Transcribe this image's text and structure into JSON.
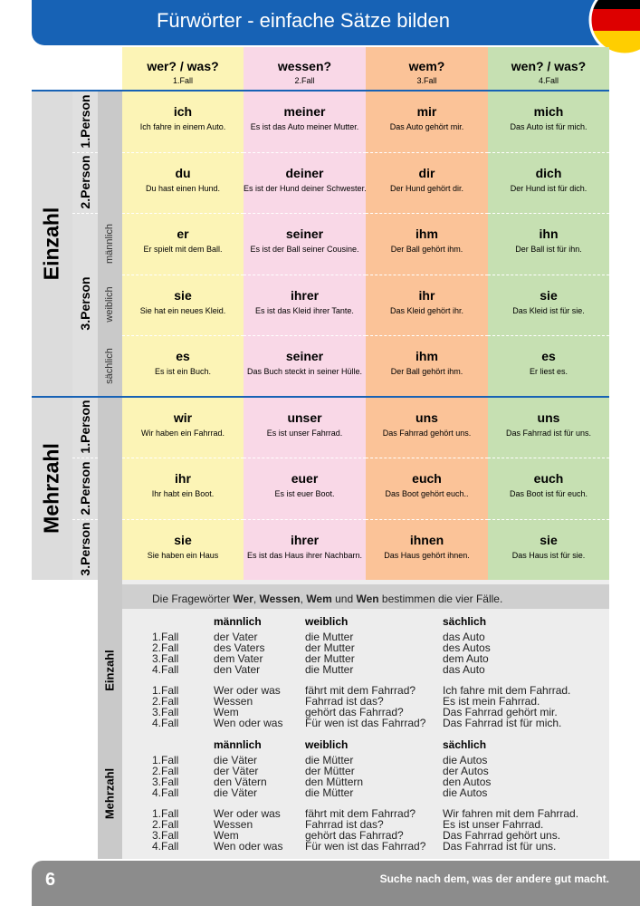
{
  "header": {
    "title": "Fürwörter - einfache Sätze bilden"
  },
  "table": {
    "columns": [
      {
        "question": "wer? / was?",
        "case": "1.Fall"
      },
      {
        "question": "wessen?",
        "case": "2.Fall"
      },
      {
        "question": "wem?",
        "case": "3.Fall"
      },
      {
        "question": "wen? / was?",
        "case": "4.Fall"
      }
    ],
    "groups": [
      {
        "label": "Einzahl",
        "persons": [
          {
            "label": "1.Person",
            "rows": [
              {
                "cells": [
                  {
                    "pronoun": "ich",
                    "example": "Ich fahre in einem Auto."
                  },
                  {
                    "pronoun": "meiner",
                    "example": "Es ist das Auto meiner Mutter."
                  },
                  {
                    "pronoun": "mir",
                    "example": "Das Auto gehört mir."
                  },
                  {
                    "pronoun": "mich",
                    "example": "Das Auto ist für mich."
                  }
                ]
              }
            ]
          },
          {
            "label": "2.Person",
            "rows": [
              {
                "cells": [
                  {
                    "pronoun": "du",
                    "example": "Du hast einen Hund."
                  },
                  {
                    "pronoun": "deiner",
                    "example": "Es ist der Hund deiner Schwester."
                  },
                  {
                    "pronoun": "dir",
                    "example": "Der Hund gehört dir."
                  },
                  {
                    "pronoun": "dich",
                    "example": "Der Hund ist für dich."
                  }
                ]
              }
            ]
          },
          {
            "label": "3.Person",
            "rows": [
              {
                "gender": "männlich",
                "cells": [
                  {
                    "pronoun": "er",
                    "example": "Er spielt mit dem Ball."
                  },
                  {
                    "pronoun": "seiner",
                    "example": "Es ist der Ball seiner Cousine."
                  },
                  {
                    "pronoun": "ihm",
                    "example": "Der Ball gehört ihm."
                  },
                  {
                    "pronoun": "ihn",
                    "example": "Der Ball ist für ihn."
                  }
                ]
              },
              {
                "gender": "weiblich",
                "cells": [
                  {
                    "pronoun": "sie",
                    "example": "Sie hat ein neues Kleid."
                  },
                  {
                    "pronoun": "ihrer",
                    "example": "Es ist das Kleid ihrer Tante."
                  },
                  {
                    "pronoun": "ihr",
                    "example": "Das Kleid gehört ihr."
                  },
                  {
                    "pronoun": "sie",
                    "example": "Das Kleid ist für sie."
                  }
                ]
              },
              {
                "gender": "sächlich",
                "cells": [
                  {
                    "pronoun": "es",
                    "example": "Es ist ein Buch."
                  },
                  {
                    "pronoun": "seiner",
                    "example": "Das Buch steckt in seiner Hülle."
                  },
                  {
                    "pronoun": "ihm",
                    "example": "Der Ball gehört ihm."
                  },
                  {
                    "pronoun": "es",
                    "example": "Er liest es."
                  }
                ]
              }
            ]
          }
        ]
      },
      {
        "label": "Mehrzahl",
        "persons": [
          {
            "label": "1.Person",
            "rows": [
              {
                "cells": [
                  {
                    "pronoun": "wir",
                    "example": "Wir haben ein Fahrrad."
                  },
                  {
                    "pronoun": "unser",
                    "example": "Es ist unser Fahrrad."
                  },
                  {
                    "pronoun": "uns",
                    "example": "Das Fahrrad gehört uns."
                  },
                  {
                    "pronoun": "uns",
                    "example": "Das Fahrrad ist für uns."
                  }
                ]
              }
            ]
          },
          {
            "label": "2.Person",
            "rows": [
              {
                "cells": [
                  {
                    "pronoun": "ihr",
                    "example": "Ihr habt ein Boot."
                  },
                  {
                    "pronoun": "euer",
                    "example": "Es ist euer Boot."
                  },
                  {
                    "pronoun": "euch",
                    "example": "Das Boot gehört euch.."
                  },
                  {
                    "pronoun": "euch",
                    "example": "Das Boot ist für euch."
                  }
                ]
              }
            ]
          },
          {
            "label": "3.Person",
            "rows": [
              {
                "cells": [
                  {
                    "pronoun": "sie",
                    "example": "Sie haben ein Haus"
                  },
                  {
                    "pronoun": "ihrer",
                    "example": "Es ist das Haus ihrer Nachbarn."
                  },
                  {
                    "pronoun": "ihnen",
                    "example": "Das Haus gehört ihnen."
                  },
                  {
                    "pronoun": "sie",
                    "example": "Das Haus ist für sie."
                  }
                ]
              }
            ]
          }
        ]
      }
    ]
  },
  "declension": {
    "intro": [
      "Die Fragewörter ",
      "Wer",
      ", ",
      "Wessen",
      ", ",
      "Wem",
      " und ",
      "Wen",
      " bestimmen die vier Fälle."
    ],
    "sections": [
      {
        "label": "Einzahl",
        "headers": [
          "männlich",
          "weiblich",
          "sächlich"
        ],
        "blocks": [
          [
            [
              "1.Fall",
              "der Vater",
              "die Mutter",
              "das Auto"
            ],
            [
              "2.Fall",
              "des Vaters",
              "der Mutter",
              "des Autos"
            ],
            [
              "3.Fall",
              "dem Vater",
              "der Mutter",
              "dem Auto"
            ],
            [
              "4.Fall",
              "den Vater",
              "die Mutter",
              "das Auto"
            ]
          ],
          [
            [
              "1.Fall",
              "Wer oder was",
              "fährt mit dem Fahrrad?",
              "Ich fahre mit dem Fahrrad."
            ],
            [
              "2.Fall",
              "Wessen",
              "Fahrrad ist das?",
              "Es ist mein Fahrrad."
            ],
            [
              "3.Fall",
              "Wem",
              "gehört das Fahrrad?",
              "Das Fahrrad gehört mir."
            ],
            [
              "4.Fall",
              "Wen oder was",
              "Für wen ist das Fahrrad?",
              "Das Fahrrad ist für mich."
            ]
          ]
        ]
      },
      {
        "label": "Mehrzahl",
        "headers": [
          "männlich",
          "weiblich",
          "sächlich"
        ],
        "blocks": [
          [
            [
              "1.Fall",
              "die Väter",
              "die Mütter",
              "die Autos"
            ],
            [
              "2.Fall",
              "der Väter",
              "der Mütter",
              "der Autos"
            ],
            [
              "3.Fall",
              "den Vätern",
              "den Müttern",
              "den Autos"
            ],
            [
              "4.Fall",
              "die Väter",
              "die Mütter",
              "die Autos"
            ]
          ],
          [
            [
              "1.Fall",
              "Wer oder was",
              "fährt mit dem Fahrrad?",
              "Wir fahren mit dem Fahrrad."
            ],
            [
              "2.Fall",
              "Wessen",
              "Fahrrad ist das?",
              "Es ist unser Fahrrad."
            ],
            [
              "3.Fall",
              "Wem",
              "gehört das Fahrrad?",
              "Das Fahrrad gehört uns."
            ],
            [
              "4.Fall",
              "Wen oder was",
              "Für wen ist das Fahrrad?",
              "Das Fahrrad ist für uns."
            ]
          ]
        ]
      }
    ]
  },
  "footer": {
    "page": "6",
    "slogan": "Suche nach dem, was der andere gut macht."
  }
}
